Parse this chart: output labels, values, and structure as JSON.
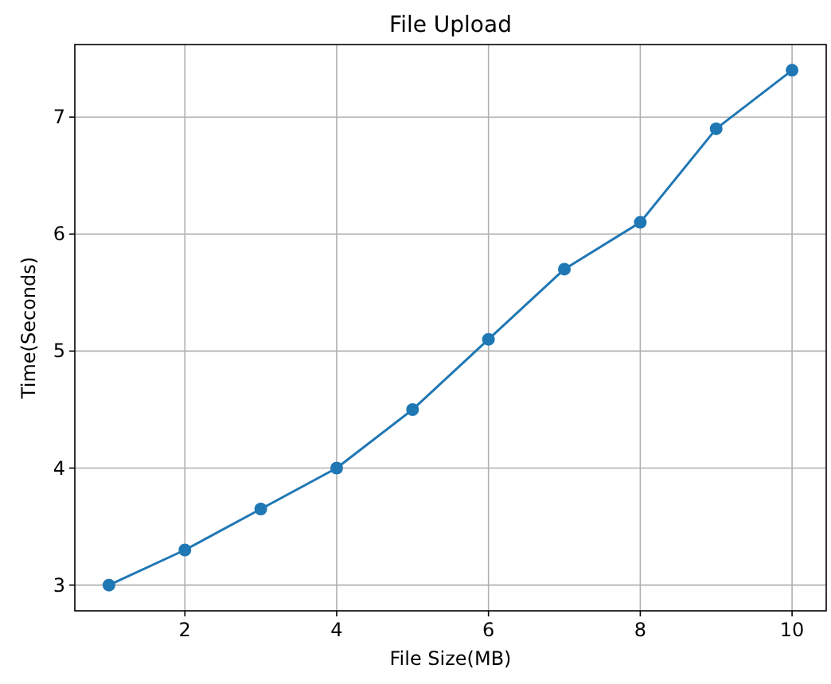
{
  "chart_data": {
    "type": "line",
    "title": "File Upload",
    "xlabel": "File Size(MB)",
    "ylabel": "Time(Seconds)",
    "x": [
      1,
      2,
      3,
      4,
      5,
      6,
      7,
      8,
      9,
      10
    ],
    "series": [
      {
        "color": "#1f77b4",
        "values": [
          3.0,
          3.3,
          3.65,
          4.0,
          4.5,
          5.1,
          5.7,
          6.1,
          6.9,
          7.4
        ]
      }
    ],
    "xlim": [
      0.55,
      10.45
    ],
    "ylim": [
      2.78,
      7.62
    ],
    "xticks": [
      2,
      4,
      6,
      8,
      10
    ],
    "yticks": [
      3,
      4,
      5,
      6,
      7
    ],
    "grid": true,
    "marker": "circle",
    "line_style": "solid"
  }
}
